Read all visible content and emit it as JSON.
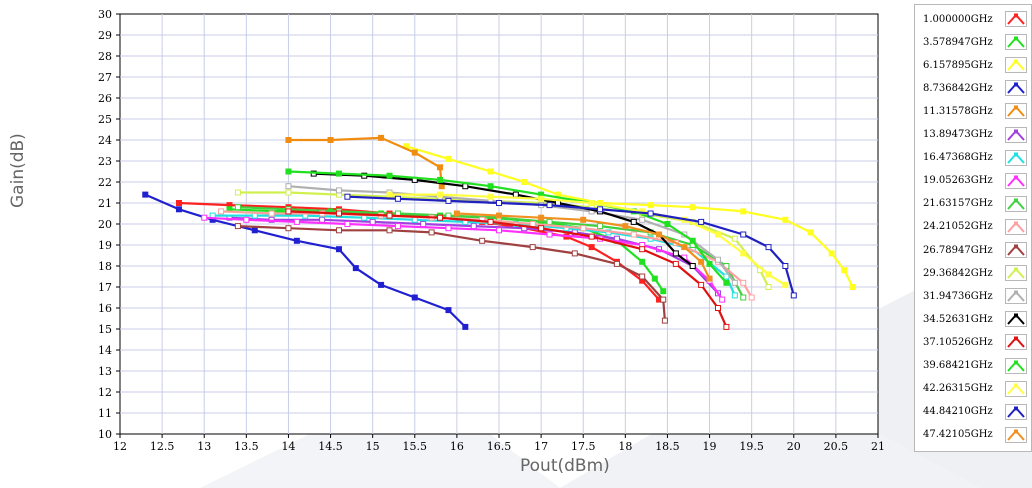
{
  "chart_data": {
    "type": "line",
    "title": "",
    "xlabel": "Pout(dBm)",
    "ylabel": "Gain(dB)",
    "xlim": [
      12,
      21
    ],
    "ylim": [
      10,
      30
    ],
    "grid": true,
    "legend_position": "right",
    "x_ticks": [
      "12",
      "12.5",
      "13",
      "13.5",
      "14",
      "14.5",
      "15",
      "15.5",
      "16",
      "16.5",
      "17",
      "17.5",
      "18",
      "18.5",
      "19",
      "19.5",
      "20",
      "20.5",
      "21"
    ],
    "y_ticks": [
      "10",
      "11",
      "12",
      "13",
      "14",
      "15",
      "16",
      "17",
      "18",
      "19",
      "20",
      "21",
      "22",
      "23",
      "24",
      "25",
      "26",
      "27",
      "28",
      "29",
      "30"
    ],
    "series": [
      {
        "name": "1.000000GHz",
        "color": "#ff2020",
        "marker": "filled",
        "points": [
          [
            12.7,
            21.0
          ],
          [
            13.3,
            20.9
          ],
          [
            14.0,
            20.8
          ],
          [
            14.6,
            20.7
          ],
          [
            15.2,
            20.5
          ],
          [
            15.8,
            20.3
          ],
          [
            16.3,
            20.1
          ],
          [
            16.8,
            19.8
          ],
          [
            17.3,
            19.4
          ],
          [
            17.6,
            18.9
          ],
          [
            17.9,
            18.2
          ],
          [
            18.2,
            17.3
          ],
          [
            18.4,
            16.4
          ]
        ]
      },
      {
        "name": "3.578947GHz",
        "color": "#20e020",
        "marker": "filled",
        "points": [
          [
            13.3,
            20.7
          ],
          [
            13.9,
            20.6
          ],
          [
            14.5,
            20.6
          ],
          [
            15.1,
            20.5
          ],
          [
            15.8,
            20.4
          ],
          [
            16.4,
            20.3
          ],
          [
            17.0,
            20.1
          ],
          [
            17.5,
            19.8
          ],
          [
            17.9,
            19.2
          ],
          [
            18.2,
            18.2
          ],
          [
            18.35,
            17.4
          ],
          [
            18.45,
            16.8
          ]
        ]
      },
      {
        "name": "6.157895GHz",
        "color": "#ffff20",
        "marker": "filled",
        "points": [
          [
            15.4,
            23.7
          ],
          [
            15.9,
            23.1
          ],
          [
            16.4,
            22.5
          ],
          [
            16.8,
            22.0
          ],
          [
            17.2,
            21.4
          ],
          [
            17.7,
            21.0
          ],
          [
            18.3,
            20.9
          ],
          [
            18.8,
            20.8
          ],
          [
            19.4,
            20.6
          ],
          [
            19.9,
            20.2
          ],
          [
            20.2,
            19.6
          ],
          [
            20.45,
            18.6
          ],
          [
            20.6,
            17.8
          ],
          [
            20.7,
            17.0
          ]
        ]
      },
      {
        "name": "8.736842GHz",
        "color": "#2020d0",
        "marker": "filled",
        "points": [
          [
            12.3,
            21.4
          ],
          [
            12.7,
            20.7
          ],
          [
            13.1,
            20.2
          ],
          [
            13.6,
            19.7
          ],
          [
            14.1,
            19.2
          ],
          [
            14.6,
            18.8
          ],
          [
            14.8,
            17.9
          ],
          [
            15.1,
            17.1
          ],
          [
            15.5,
            16.5
          ],
          [
            15.9,
            15.9
          ],
          [
            16.1,
            15.1
          ]
        ]
      },
      {
        "name": "11.31578GHz",
        "color": "#f08c10",
        "marker": "filled",
        "points": [
          [
            14.0,
            24.0
          ],
          [
            14.5,
            24.0
          ],
          [
            15.1,
            24.1
          ],
          [
            15.5,
            23.4
          ],
          [
            15.8,
            22.7
          ],
          [
            15.82,
            21.8
          ]
        ]
      },
      {
        "name": "13.89473GHz",
        "color": "#a040e0",
        "marker": "open",
        "points": [
          [
            13.3,
            20.3
          ],
          [
            13.8,
            20.2
          ],
          [
            14.4,
            20.2
          ],
          [
            15.0,
            20.1
          ],
          [
            15.6,
            20.0
          ],
          [
            16.2,
            19.9
          ],
          [
            16.8,
            19.8
          ],
          [
            17.4,
            19.6
          ],
          [
            17.9,
            19.3
          ],
          [
            18.4,
            18.8
          ],
          [
            18.8,
            18.0
          ],
          [
            19.1,
            16.7
          ]
        ]
      },
      {
        "name": "16.47368GHz",
        "color": "#20e0e0",
        "marker": "open",
        "points": [
          [
            13.1,
            20.4
          ],
          [
            13.6,
            20.4
          ],
          [
            14.2,
            20.4
          ],
          [
            14.9,
            20.3
          ],
          [
            15.5,
            20.2
          ],
          [
            16.1,
            20.1
          ],
          [
            16.7,
            20.0
          ],
          [
            17.3,
            19.8
          ],
          [
            17.8,
            19.6
          ],
          [
            18.3,
            19.3
          ],
          [
            18.8,
            18.8
          ],
          [
            19.2,
            17.5
          ],
          [
            19.3,
            16.6
          ]
        ]
      },
      {
        "name": "19.05263GHz",
        "color": "#ff30ff",
        "marker": "open",
        "points": [
          [
            13.0,
            20.3
          ],
          [
            13.5,
            20.2
          ],
          [
            14.1,
            20.1
          ],
          [
            14.7,
            20.0
          ],
          [
            15.3,
            19.9
          ],
          [
            15.9,
            19.8
          ],
          [
            16.5,
            19.7
          ],
          [
            17.1,
            19.5
          ],
          [
            17.7,
            19.3
          ],
          [
            18.2,
            19.0
          ],
          [
            18.7,
            18.4
          ],
          [
            19.0,
            17.3
          ],
          [
            19.15,
            16.4
          ]
        ]
      },
      {
        "name": "21.63157GHz",
        "color": "#40d040",
        "marker": "open",
        "points": [
          [
            13.4,
            20.8
          ],
          [
            14.0,
            20.7
          ],
          [
            14.6,
            20.6
          ],
          [
            15.3,
            20.5
          ],
          [
            15.9,
            20.4
          ],
          [
            16.5,
            20.3
          ],
          [
            17.1,
            20.1
          ],
          [
            17.7,
            19.9
          ],
          [
            18.3,
            19.6
          ],
          [
            18.8,
            19.0
          ],
          [
            19.2,
            18.0
          ],
          [
            19.4,
            16.5
          ]
        ]
      },
      {
        "name": "24.21052GHz",
        "color": "#ffa0a0",
        "marker": "open",
        "points": [
          [
            13.2,
            20.6
          ],
          [
            13.8,
            20.5
          ],
          [
            14.4,
            20.5
          ],
          [
            15.1,
            20.4
          ],
          [
            15.7,
            20.3
          ],
          [
            16.3,
            20.2
          ],
          [
            16.9,
            20.0
          ],
          [
            17.5,
            19.8
          ],
          [
            18.1,
            19.5
          ],
          [
            18.6,
            19.1
          ],
          [
            19.1,
            18.2
          ],
          [
            19.4,
            17.2
          ],
          [
            19.5,
            16.5
          ]
        ]
      },
      {
        "name": "26.78947GHz",
        "color": "#a04040",
        "marker": "open",
        "points": [
          [
            13.4,
            19.9
          ],
          [
            14.0,
            19.8
          ],
          [
            14.6,
            19.7
          ],
          [
            15.2,
            19.7
          ],
          [
            15.7,
            19.6
          ],
          [
            16.3,
            19.2
          ],
          [
            16.9,
            18.9
          ],
          [
            17.4,
            18.6
          ],
          [
            17.9,
            18.1
          ],
          [
            18.2,
            17.5
          ],
          [
            18.45,
            16.4
          ],
          [
            18.47,
            15.4
          ]
        ]
      },
      {
        "name": "29.36842GHz",
        "color": "#d0f050",
        "marker": "open",
        "points": [
          [
            13.4,
            21.5
          ],
          [
            14.0,
            21.5
          ],
          [
            14.6,
            21.4
          ],
          [
            15.2,
            21.3
          ],
          [
            15.8,
            21.2
          ],
          [
            16.4,
            21.1
          ],
          [
            17.0,
            21.0
          ],
          [
            17.6,
            20.8
          ],
          [
            18.2,
            20.5
          ],
          [
            18.8,
            20.1
          ],
          [
            19.3,
            19.3
          ],
          [
            19.6,
            17.8
          ],
          [
            19.7,
            17.0
          ]
        ]
      },
      {
        "name": "31.94736GHz",
        "color": "#b0b0b0",
        "marker": "open",
        "points": [
          [
            14.0,
            21.8
          ],
          [
            14.6,
            21.6
          ],
          [
            15.2,
            21.5
          ],
          [
            15.8,
            21.3
          ],
          [
            16.4,
            21.1
          ],
          [
            17.0,
            20.9
          ],
          [
            17.6,
            20.6
          ],
          [
            18.2,
            20.2
          ],
          [
            18.7,
            19.5
          ],
          [
            19.1,
            18.3
          ],
          [
            19.3,
            17.2
          ]
        ]
      },
      {
        "name": "34.52631GHz",
        "color": "#000000",
        "marker": "open",
        "points": [
          [
            14.3,
            22.4
          ],
          [
            14.9,
            22.3
          ],
          [
            15.5,
            22.1
          ],
          [
            16.1,
            21.8
          ],
          [
            16.7,
            21.4
          ],
          [
            17.2,
            21.0
          ],
          [
            17.7,
            20.6
          ],
          [
            18.1,
            20.1
          ],
          [
            18.4,
            19.5
          ],
          [
            18.6,
            18.6
          ],
          [
            18.8,
            18.0
          ]
        ]
      },
      {
        "name": "37.10526GHz",
        "color": "#e01010",
        "marker": "open",
        "points": [
          [
            14.0,
            20.6
          ],
          [
            14.6,
            20.5
          ],
          [
            15.2,
            20.4
          ],
          [
            15.8,
            20.3
          ],
          [
            16.4,
            20.1
          ],
          [
            17.0,
            19.8
          ],
          [
            17.6,
            19.4
          ],
          [
            18.2,
            18.8
          ],
          [
            18.6,
            18.1
          ],
          [
            18.9,
            17.1
          ],
          [
            19.1,
            16.0
          ],
          [
            19.2,
            15.1
          ]
        ]
      },
      {
        "name": "39.68421GHz",
        "color": "#20e020",
        "marker": "filled",
        "points": [
          [
            14.0,
            22.5
          ],
          [
            14.6,
            22.4
          ],
          [
            15.2,
            22.3
          ],
          [
            15.8,
            22.1
          ],
          [
            16.4,
            21.8
          ],
          [
            17.0,
            21.4
          ],
          [
            17.6,
            21.0
          ],
          [
            18.1,
            20.6
          ],
          [
            18.5,
            20.0
          ],
          [
            18.8,
            19.2
          ],
          [
            19.0,
            18.1
          ],
          [
            19.2,
            17.2
          ]
        ]
      },
      {
        "name": "42.26315GHz",
        "color": "#ffff40",
        "marker": "filled",
        "points": [
          [
            15.2,
            21.4
          ],
          [
            15.8,
            21.4
          ],
          [
            16.4,
            21.3
          ],
          [
            17.0,
            21.2
          ],
          [
            17.6,
            21.0
          ],
          [
            18.2,
            20.6
          ],
          [
            18.7,
            20.2
          ],
          [
            19.1,
            19.5
          ],
          [
            19.4,
            18.6
          ],
          [
            19.7,
            17.6
          ],
          [
            19.9,
            17.1
          ]
        ]
      },
      {
        "name": "44.84210GHz",
        "color": "#2020c0",
        "marker": "open",
        "points": [
          [
            14.7,
            21.3
          ],
          [
            15.3,
            21.2
          ],
          [
            15.9,
            21.1
          ],
          [
            16.5,
            21.0
          ],
          [
            17.1,
            20.9
          ],
          [
            17.7,
            20.7
          ],
          [
            18.3,
            20.5
          ],
          [
            18.9,
            20.1
          ],
          [
            19.4,
            19.5
          ],
          [
            19.7,
            18.9
          ],
          [
            19.9,
            18.0
          ],
          [
            20.0,
            16.6
          ]
        ]
      },
      {
        "name": "47.42105GHz",
        "color": "#f09020",
        "marker": "filled",
        "points": [
          [
            16.0,
            20.5
          ],
          [
            16.5,
            20.4
          ],
          [
            17.0,
            20.3
          ],
          [
            17.5,
            20.2
          ],
          [
            18.0,
            19.9
          ],
          [
            18.4,
            19.5
          ],
          [
            18.7,
            18.9
          ],
          [
            18.9,
            18.2
          ],
          [
            19.0,
            17.4
          ]
        ]
      }
    ]
  }
}
